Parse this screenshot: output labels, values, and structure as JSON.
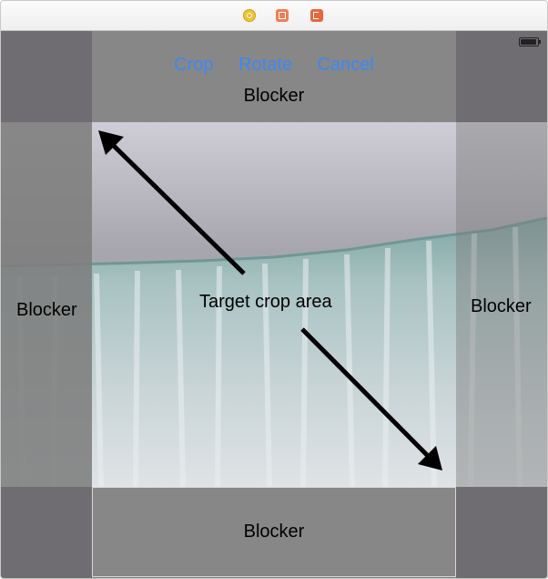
{
  "toolbar": {
    "crop_label": "Crop",
    "rotate_label": "Rotate",
    "cancel_label": "Cancel"
  },
  "blockers": {
    "top": "Blocker",
    "left": "Blocker",
    "right": "Blocker",
    "bottom": "Blocker"
  },
  "target_label": "Target crop area",
  "colors": {
    "accent": "#3b88f5",
    "blocker": "#878787"
  },
  "titlebar_icons": [
    "view-controller-icon",
    "first-responder-icon",
    "exit-icon"
  ],
  "status_icons": [
    "battery-icon"
  ]
}
